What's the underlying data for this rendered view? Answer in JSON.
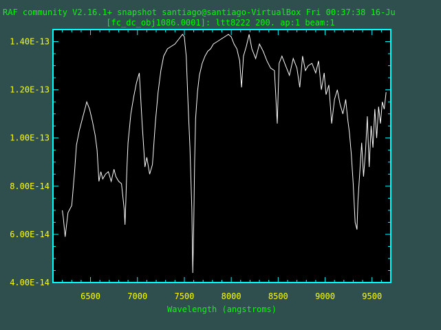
{
  "window": {
    "title_line_1": "RAF community V2.16.1+ snapshot santiago@santiago-VirtualBox Fri 00:37:38 16-Ju",
    "title_line_2": "[fc_dc_obj1086.0001]: ltt8222 200. ap:1 beam:1"
  },
  "colors": {
    "background": "#2f4f4f",
    "plot_area": "#000000",
    "frame": "#00ffff",
    "title_text": "#00ff00",
    "tick_labels": "#ffff00",
    "axis_label": "#00ff00",
    "spectrum": "#ffffff"
  },
  "chart_data": {
    "type": "line",
    "title": "RAF community V2.16.1+ snapshot santiago@santiago-VirtualBox Fri 00:37:38 16-Ju",
    "subtitle": "[fc_dc_obj1086.0001]: ltt8222 200. ap:1 beam:1",
    "xlabel": "Wavelength (angstroms)",
    "ylabel": "",
    "xlim": [
      6100,
      9700
    ],
    "ylim": [
      4e-14,
      1.45e-13
    ],
    "xticks": [
      6500,
      7000,
      7500,
      8000,
      8500,
      9000,
      9500
    ],
    "xtick_labels": [
      "6500",
      "7000",
      "7500",
      "8000",
      "8500",
      "9000",
      "9500"
    ],
    "yticks": [
      4e-14,
      6e-14,
      8e-14,
      1e-13,
      1.2e-13,
      1.4e-13
    ],
    "ytick_labels": [
      "4.00E-14",
      "6.00E-14",
      "8.00E-14",
      "1.00E-13",
      "1.20E-13",
      "1.40E-13"
    ],
    "grid": false,
    "series": [
      {
        "x": [
          6200,
          6210,
          6230,
          6260,
          6300,
          6330,
          6350,
          6380,
          6400,
          6420,
          6440,
          6460,
          6490,
          6520,
          6550,
          6570,
          6590,
          6610,
          6630,
          6660,
          6690,
          6720,
          6750,
          6770,
          6800,
          6830,
          6860,
          6868,
          6875,
          6882,
          6890,
          6900,
          6930,
          6960,
          6990,
          7020,
          7050,
          7080,
          7100,
          7130,
          7160,
          7190,
          7220,
          7250,
          7280,
          7320,
          7360,
          7400,
          7440,
          7480,
          7500,
          7520,
          7540,
          7560,
          7580,
          7590,
          7600,
          7610,
          7620,
          7640,
          7660,
          7690,
          7720,
          7750,
          7780,
          7810,
          7850,
          7890,
          7930,
          7970,
          8000,
          8030,
          8060,
          8090,
          8110,
          8130,
          8160,
          8190,
          8220,
          8260,
          8300,
          8340,
          8380,
          8420,
          8460,
          8490,
          8510,
          8540,
          8580,
          8620,
          8660,
          8700,
          8730,
          8760,
          8790,
          8820,
          8860,
          8900,
          8930,
          8960,
          8990,
          9010,
          9040,
          9070,
          9100,
          9130,
          9160,
          9190,
          9220,
          9240,
          9260,
          9280,
          9300,
          9320,
          9340,
          9350,
          9370,
          9390,
          9410,
          9430,
          9450,
          9470,
          9490,
          9510,
          9530,
          9550,
          9570,
          9590,
          9610,
          9630,
          9650
        ],
        "y": [
          7e-14,
          6.7e-14,
          5.9e-14,
          6.9e-14,
          7.2e-14,
          8.6e-14,
          9.7e-14,
          1.03e-13,
          1.06e-13,
          1.09e-13,
          1.12e-13,
          1.15e-13,
          1.12e-13,
          1.07e-13,
          1.01e-13,
          9.5e-14,
          8.2e-14,
          8.6e-14,
          8.3e-14,
          8.5e-14,
          8.6e-14,
          8.2e-14,
          8.7e-14,
          8.4e-14,
          8.2e-14,
          8.1e-14,
          7e-14,
          6.4e-14,
          7.2e-14,
          8.1e-14,
          8.9e-14,
          9.8e-14,
          1.1e-13,
          1.17e-13,
          1.23e-13,
          1.27e-13,
          1.06e-13,
          8.8e-14,
          9.2e-14,
          8.5e-14,
          8.9e-14,
          1.06e-13,
          1.19e-13,
          1.28e-13,
          1.34e-13,
          1.37e-13,
          1.38e-13,
          1.39e-13,
          1.41e-13,
          1.43e-13,
          1.42e-13,
          1.34e-13,
          1.14e-13,
          9.6e-14,
          7e-14,
          4.4e-14,
          6.4e-14,
          9e-14,
          1.08e-13,
          1.19e-13,
          1.26e-13,
          1.31e-13,
          1.34e-13,
          1.36e-13,
          1.37e-13,
          1.39e-13,
          1.4e-13,
          1.41e-13,
          1.42e-13,
          1.43e-13,
          1.42e-13,
          1.39e-13,
          1.37e-13,
          1.32e-13,
          1.21e-13,
          1.34e-13,
          1.38e-13,
          1.43e-13,
          1.37e-13,
          1.33e-13,
          1.39e-13,
          1.36e-13,
          1.32e-13,
          1.29e-13,
          1.28e-13,
          1.06e-13,
          1.31e-13,
          1.34e-13,
          1.3e-13,
          1.26e-13,
          1.33e-13,
          1.29e-13,
          1.21e-13,
          1.34e-13,
          1.28e-13,
          1.3e-13,
          1.31e-13,
          1.27e-13,
          1.32e-13,
          1.2e-13,
          1.27e-13,
          1.18e-13,
          1.22e-13,
          1.06e-13,
          1.16e-13,
          1.2e-13,
          1.14e-13,
          1.1e-13,
          1.16e-13,
          1.08e-13,
          1.02e-13,
          9.3e-14,
          8.1e-14,
          6.5e-14,
          6.2e-14,
          7.4e-14,
          8.6e-14,
          9.8e-14,
          8.4e-14,
          9.4e-14,
          1.09e-13,
          8.8e-14,
          1.05e-13,
          9.6e-14,
          1.12e-13,
          1e-13,
          1.13e-13,
          1.06e-13,
          1.15e-13,
          1.12e-13,
          1.19e-13
        ]
      }
    ]
  }
}
